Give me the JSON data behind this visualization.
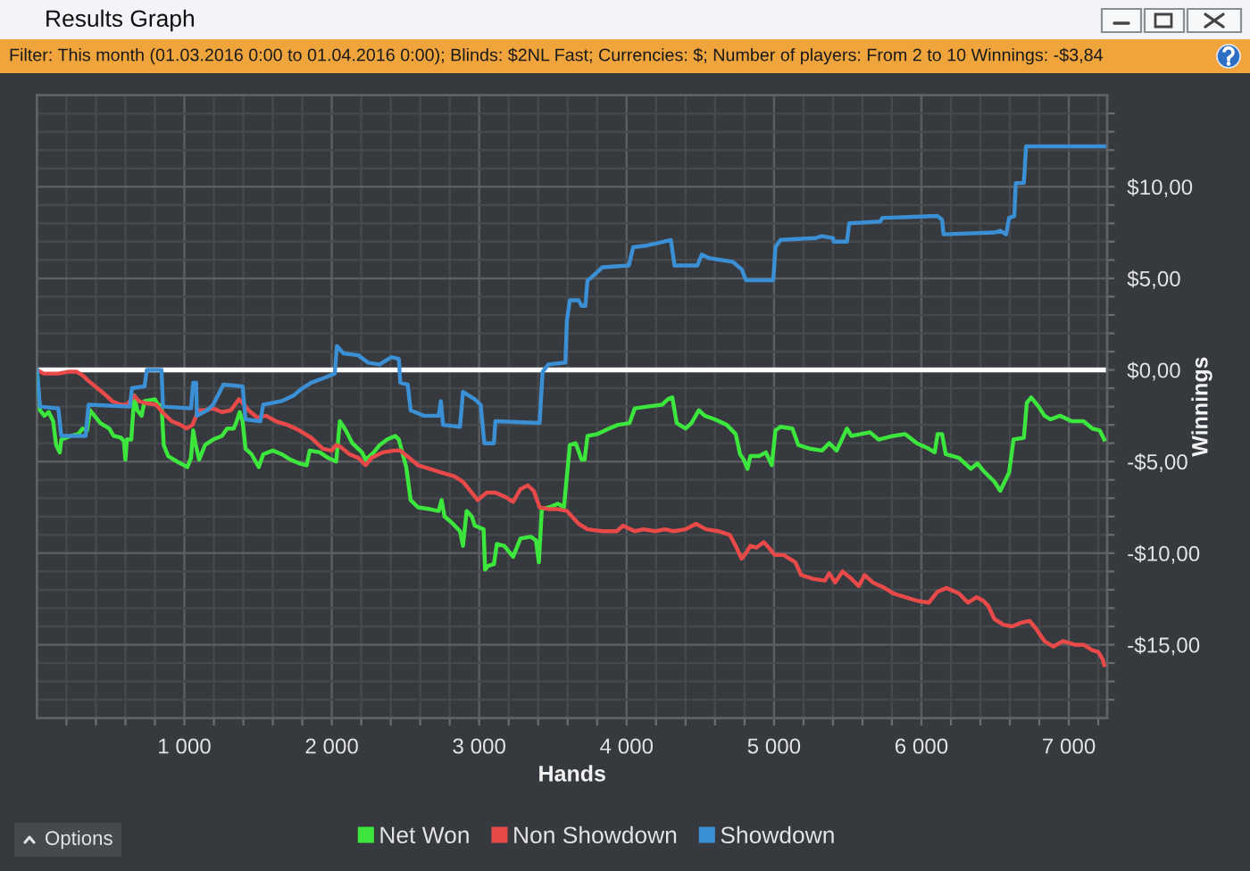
{
  "chart_data": {
    "type": "line",
    "title": "Results Graph",
    "subtitle": "Filter: This month (01.03.2016 0:00 to 01.04.2016 0:00); Blinds: $2NL Fast; Currencies: $; Number of players: From 2 to 10 Winnings: -$3,84",
    "xlabel": "Hands",
    "ylabel": "Winnings",
    "annotations": [
      "Options"
    ],
    "xlim": [
      0,
      7260
    ],
    "ylim": [
      -19,
      15
    ],
    "xticks": [
      {
        "value": 200,
        "label": null
      },
      {
        "value": 400,
        "label": null
      },
      {
        "value": 600,
        "label": null
      },
      {
        "value": 800,
        "label": null
      },
      {
        "value": 1000,
        "label": "1 000"
      },
      {
        "value": 1200,
        "label": null
      },
      {
        "value": 1400,
        "label": null
      },
      {
        "value": 1600,
        "label": null
      },
      {
        "value": 1800,
        "label": null
      },
      {
        "value": 2000,
        "label": "2 000"
      },
      {
        "value": 2200,
        "label": null
      },
      {
        "value": 2400,
        "label": null
      },
      {
        "value": 2600,
        "label": null
      },
      {
        "value": 2800,
        "label": null
      },
      {
        "value": 3000,
        "label": "3 000"
      },
      {
        "value": 3200,
        "label": null
      },
      {
        "value": 3400,
        "label": null
      },
      {
        "value": 3600,
        "label": null
      },
      {
        "value": 3800,
        "label": null
      },
      {
        "value": 4000,
        "label": "4 000"
      },
      {
        "value": 4200,
        "label": null
      },
      {
        "value": 4400,
        "label": null
      },
      {
        "value": 4600,
        "label": null
      },
      {
        "value": 4800,
        "label": null
      },
      {
        "value": 5000,
        "label": "5 000"
      },
      {
        "value": 5200,
        "label": null
      },
      {
        "value": 5400,
        "label": null
      },
      {
        "value": 5600,
        "label": null
      },
      {
        "value": 5800,
        "label": null
      },
      {
        "value": 6000,
        "label": "6 000"
      },
      {
        "value": 6200,
        "label": null
      },
      {
        "value": 6400,
        "label": null
      },
      {
        "value": 6600,
        "label": null
      },
      {
        "value": 6800,
        "label": null
      },
      {
        "value": 7000,
        "label": "7 000"
      },
      {
        "value": 7200,
        "label": null
      }
    ],
    "yticks": [
      {
        "value": -18,
        "label": null
      },
      {
        "value": -17,
        "label": null
      },
      {
        "value": -16,
        "label": null
      },
      {
        "value": -15,
        "label": "-$15,00"
      },
      {
        "value": -14,
        "label": null
      },
      {
        "value": -13,
        "label": null
      },
      {
        "value": -12,
        "label": null
      },
      {
        "value": -11,
        "label": null
      },
      {
        "value": -10,
        "label": "-$10,00"
      },
      {
        "value": -9,
        "label": null
      },
      {
        "value": -8,
        "label": null
      },
      {
        "value": -7,
        "label": null
      },
      {
        "value": -6,
        "label": null
      },
      {
        "value": -5,
        "label": "-$5,00"
      },
      {
        "value": -4,
        "label": null
      },
      {
        "value": -3,
        "label": null
      },
      {
        "value": -2,
        "label": null
      },
      {
        "value": -1,
        "label": null
      },
      {
        "value": 0,
        "label": "$0,00"
      },
      {
        "value": 1,
        "label": null
      },
      {
        "value": 2,
        "label": null
      },
      {
        "value": 3,
        "label": null
      },
      {
        "value": 4,
        "label": null
      },
      {
        "value": 5,
        "label": "$5,00"
      },
      {
        "value": 6,
        "label": null
      },
      {
        "value": 7,
        "label": null
      },
      {
        "value": 8,
        "label": null
      },
      {
        "value": 9,
        "label": null
      },
      {
        "value": 10,
        "label": "$10,00"
      },
      {
        "value": 11,
        "label": null
      },
      {
        "value": 12,
        "label": null
      },
      {
        "value": 13,
        "label": null
      },
      {
        "value": 14,
        "label": null
      }
    ],
    "grid": true,
    "legend": "bottom",
    "line_style": "solid",
    "ref_lines": [
      {
        "axis": "y",
        "value": 0,
        "color": "#ffffff"
      }
    ],
    "series": [
      {
        "name": "Net Won",
        "color": "#3ce63c",
        "x": [
          0,
          20,
          50,
          80,
          110,
          130,
          155,
          165,
          230,
          280,
          310,
          340,
          360,
          390,
          430,
          490,
          520,
          570,
          590,
          600,
          610,
          640,
          660,
          680,
          710,
          730,
          800,
          830,
          845,
          860,
          890,
          950,
          1020,
          1045,
          1060,
          1075,
          1100,
          1140,
          1195,
          1255,
          1290,
          1335,
          1355,
          1375,
          1395,
          1415,
          1455,
          1505,
          1535,
          1600,
          1660,
          1720,
          1780,
          1830,
          1850,
          1920,
          1975,
          2030,
          2055,
          2095,
          2140,
          2205,
          2230,
          2285,
          2325,
          2375,
          2430,
          2455,
          2505,
          2535,
          2585,
          2665,
          2725,
          2745,
          2765,
          2810,
          2870,
          2890,
          2915,
          2950,
          2970,
          3030,
          3040,
          3060,
          3100,
          3120,
          3170,
          3230,
          3280,
          3350,
          3385,
          3405,
          3425,
          3475,
          3535,
          3575,
          3615,
          3655,
          3695,
          3715,
          3735,
          3800,
          3880,
          3940,
          4020,
          4055,
          4140,
          4240,
          4280,
          4310,
          4340,
          4400,
          4440,
          4490,
          4530,
          4600,
          4680,
          4740,
          4770,
          4795,
          4820,
          4840,
          4900,
          4945,
          4985,
          5010,
          5045,
          5125,
          5165,
          5245,
          5325,
          5375,
          5425,
          5495,
          5525,
          5590,
          5650,
          5710,
          5810,
          5890,
          5970,
          6050,
          6090,
          6110,
          6140,
          6165,
          6255,
          6335,
          6380,
          6420,
          6495,
          6535,
          6565,
          6595,
          6625,
          6695,
          6715,
          6745,
          6795,
          6835,
          6875,
          6940,
          7020,
          7100,
          7160,
          7210,
          7240
        ],
        "values": [
          0,
          -2.2,
          -2.5,
          -2.3,
          -2.8,
          -4.1,
          -4.5,
          -3.8,
          -3.6,
          -3.5,
          -3.2,
          -3.3,
          -2.2,
          -2.5,
          -2.9,
          -3.2,
          -3.6,
          -3.7,
          -3.9,
          -4.9,
          -3.8,
          -3.8,
          -1.4,
          -2.2,
          -2.5,
          -1.7,
          -1.6,
          -2.0,
          -1.9,
          -4.1,
          -4.7,
          -5.0,
          -5.3,
          -4.8,
          -3.3,
          -4.0,
          -4.9,
          -4.1,
          -3.8,
          -3.6,
          -3.2,
          -3.2,
          -2.8,
          -2.3,
          -2.8,
          -4.3,
          -4.6,
          -5.3,
          -4.6,
          -4.4,
          -4.6,
          -4.9,
          -5.1,
          -5.2,
          -4.4,
          -4.5,
          -4.8,
          -5.0,
          -2.8,
          -3.3,
          -4.0,
          -4.5,
          -4.9,
          -4.5,
          -4.1,
          -3.8,
          -3.6,
          -3.8,
          -5.3,
          -7.1,
          -7.5,
          -7.6,
          -7.7,
          -7.1,
          -8.0,
          -8.3,
          -8.8,
          -9.6,
          -7.7,
          -8.0,
          -8.5,
          -8.7,
          -10.9,
          -10.7,
          -10.6,
          -9.5,
          -9.6,
          -10.2,
          -9.2,
          -9.1,
          -9.3,
          -10.5,
          -7.6,
          -7.5,
          -7.3,
          -7.5,
          -4.1,
          -4.0,
          -4.9,
          -4.9,
          -3.6,
          -3.5,
          -3.2,
          -3.0,
          -2.9,
          -2.1,
          -2.0,
          -1.9,
          -1.6,
          -1.5,
          -2.9,
          -3.2,
          -2.9,
          -2.2,
          -2.5,
          -2.7,
          -3.0,
          -3.5,
          -4.6,
          -4.9,
          -5.4,
          -4.7,
          -4.7,
          -4.5,
          -5.2,
          -3.3,
          -3.1,
          -3.2,
          -4.1,
          -4.3,
          -4.4,
          -4.0,
          -4.4,
          -3.2,
          -3.6,
          -3.5,
          -3.4,
          -3.8,
          -3.6,
          -3.5,
          -4.0,
          -4.3,
          -4.5,
          -3.5,
          -3.5,
          -4.6,
          -4.8,
          -5.4,
          -5.1,
          -5.5,
          -6.1,
          -6.6,
          -6.1,
          -5.6,
          -3.8,
          -3.7,
          -1.8,
          -1.5,
          -2.0,
          -2.5,
          -2.7,
          -2.5,
          -2.8,
          -2.8,
          -3.2,
          -3.3,
          -3.8
        ]
      },
      {
        "name": "Non Showdown",
        "color": "#e84a4a",
        "x": [
          0,
          45,
          85,
          145,
          210,
          270,
          310,
          350,
          410,
          470,
          510,
          570,
          610,
          660,
          690,
          730,
          810,
          850,
          915,
          975,
          1015,
          1055,
          1095,
          1135,
          1195,
          1255,
          1315,
          1370,
          1395,
          1435,
          1495,
          1555,
          1620,
          1700,
          1780,
          1860,
          1940,
          2000,
          2030,
          2060,
          2120,
          2180,
          2230,
          2270,
          2345,
          2425,
          2465,
          2525,
          2585,
          2665,
          2745,
          2830,
          2890,
          2950,
          2990,
          3050,
          3110,
          3170,
          3230,
          3280,
          3330,
          3370,
          3410,
          3475,
          3535,
          3595,
          3675,
          3735,
          3835,
          3935,
          3975,
          4055,
          4115,
          4195,
          4260,
          4320,
          4400,
          4470,
          4540,
          4620,
          4700,
          4740,
          4780,
          4810,
          4840,
          4880,
          4930,
          4965,
          5005,
          5065,
          5145,
          5185,
          5265,
          5345,
          5375,
          5415,
          5465,
          5525,
          5575,
          5615,
          5670,
          5750,
          5810,
          5890,
          5970,
          6050,
          6110,
          6170,
          6255,
          6315,
          6375,
          6420,
          6455,
          6495,
          6555,
          6615,
          6675,
          6735,
          6775,
          6835,
          6895,
          6960,
          7040,
          7100,
          7160,
          7200,
          7230,
          7240
        ],
        "values": [
          0,
          -0.2,
          -0.2,
          -0.2,
          -0.1,
          -0.1,
          -0.3,
          -0.6,
          -1.0,
          -1.4,
          -1.7,
          -1.9,
          -1.9,
          -1.4,
          -1.7,
          -1.8,
          -1.9,
          -2.3,
          -2.8,
          -3.0,
          -3.2,
          -3.0,
          -2.2,
          -2.2,
          -2.1,
          -2.3,
          -2.2,
          -1.6,
          -1.8,
          -2.2,
          -2.6,
          -2.5,
          -2.8,
          -3.0,
          -3.3,
          -3.7,
          -4.3,
          -4.4,
          -4.1,
          -4.2,
          -4.6,
          -4.8,
          -5.2,
          -4.8,
          -4.5,
          -4.4,
          -4.4,
          -4.8,
          -5.2,
          -5.4,
          -5.6,
          -5.8,
          -6.1,
          -6.7,
          -7.1,
          -6.7,
          -6.7,
          -6.9,
          -7.2,
          -6.5,
          -6.3,
          -6.6,
          -7.5,
          -7.6,
          -7.6,
          -7.7,
          -8.4,
          -8.7,
          -8.8,
          -8.8,
          -8.5,
          -8.8,
          -8.7,
          -8.8,
          -8.7,
          -8.8,
          -8.7,
          -8.4,
          -8.7,
          -8.8,
          -9.0,
          -9.6,
          -10.3,
          -10.0,
          -9.6,
          -9.7,
          -9.4,
          -9.7,
          -10.1,
          -10.1,
          -10.5,
          -11.2,
          -11.4,
          -11.5,
          -11.1,
          -11.6,
          -11.0,
          -11.4,
          -11.8,
          -11.2,
          -11.6,
          -11.9,
          -12.2,
          -12.4,
          -12.6,
          -12.7,
          -12.1,
          -11.9,
          -12.2,
          -12.7,
          -12.4,
          -12.6,
          -12.9,
          -13.6,
          -13.9,
          -14.0,
          -13.8,
          -13.7,
          -14.1,
          -14.8,
          -15.1,
          -14.8,
          -15.0,
          -15.0,
          -15.3,
          -15.4,
          -15.8,
          -16.1
        ]
      },
      {
        "name": "Showdown",
        "color": "#3b8fd4",
        "x": [
          0,
          20,
          145,
          165,
          330,
          350,
          630,
          645,
          730,
          745,
          845,
          855,
          1045,
          1060,
          1080,
          1085,
          1155,
          1195,
          1265,
          1395,
          1415,
          1515,
          1535,
          1660,
          1740,
          1800,
          1860,
          1960,
          2020,
          2035,
          2080,
          2180,
          2245,
          2325,
          2405,
          2455,
          2465,
          2515,
          2535,
          2625,
          2725,
          2740,
          2755,
          2870,
          2890,
          2970,
          3010,
          3035,
          3100,
          3110,
          3410,
          3430,
          3470,
          3585,
          3595,
          3615,
          3675,
          3695,
          3720,
          3735,
          3755,
          3835,
          4015,
          4045,
          4140,
          4200,
          4300,
          4325,
          4480,
          4510,
          4560,
          4720,
          4780,
          4810,
          4995,
          5010,
          5045,
          5285,
          5325,
          5400,
          5405,
          5495,
          5510,
          5720,
          5735,
          6110,
          6140,
          6150,
          6495,
          6535,
          6575,
          6595,
          6630,
          6640,
          6695,
          6710,
          7240
        ],
        "values": [
          0,
          -2.0,
          -2.1,
          -3.6,
          -3.6,
          -1.9,
          -2.0,
          -1.0,
          -0.9,
          0,
          0,
          -2.0,
          -2.1,
          -0.7,
          -0.7,
          -2.5,
          -2.2,
          -1.9,
          -0.8,
          -0.9,
          -2.7,
          -2.8,
          -1.9,
          -1.7,
          -1.4,
          -1.0,
          -0.7,
          -0.4,
          -0.2,
          1.3,
          0.9,
          0.8,
          0.4,
          0.3,
          0.7,
          0.6,
          -0.7,
          -0.8,
          -2.2,
          -2.5,
          -2.5,
          -1.7,
          -3.0,
          -3.1,
          -1.2,
          -1.6,
          -1.9,
          -4.0,
          -4.0,
          -2.8,
          -2.9,
          -0.1,
          0.3,
          0.4,
          2.7,
          3.8,
          3.8,
          3.5,
          3.5,
          4.9,
          5.0,
          5.6,
          5.7,
          6.7,
          6.8,
          6.9,
          7.1,
          5.7,
          5.7,
          6.3,
          6.1,
          5.9,
          5.5,
          4.9,
          4.9,
          6.7,
          7.1,
          7.2,
          7.3,
          7.2,
          7.0,
          7.0,
          8.0,
          8.1,
          8.3,
          8.4,
          8.2,
          7.4,
          7.5,
          7.6,
          7.4,
          8.3,
          8.4,
          10.2,
          10.2,
          12.2,
          12.2
        ]
      }
    ]
  }
}
